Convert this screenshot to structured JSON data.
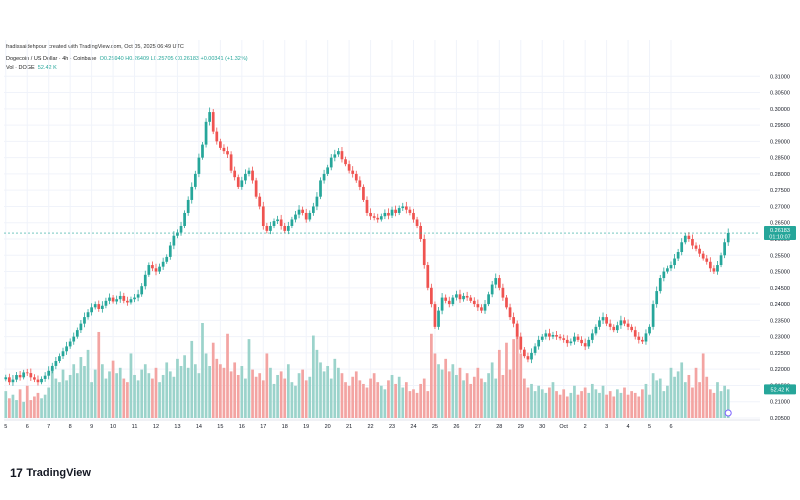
{
  "header": {
    "credit": "fradissaidehpour created with TradingView.com, Oct 05, 2025 06:49 UTC",
    "symbol_line": "Dogecoin / US Dollar · 4h · Coinbase",
    "ohlc_line": "O0.25940  H0.26409  L0.25705  C0.26183  +0.00341 (+1.32%)",
    "vol_label": "Vol · DOGE",
    "vol_value": "52.42 K"
  },
  "price_badge": {
    "price": "0.26183",
    "countdown": "01:10:07",
    "color": "#26a69a"
  },
  "vol_badge": {
    "value": "52.42 K",
    "color": "#26a69a"
  },
  "watermark": {
    "logo": "17",
    "name": "TradingView"
  },
  "colors": {
    "up": "#26a69a",
    "down": "#ef5350",
    "vol_up": "#9bd3cb",
    "vol_down": "#f3a4a2",
    "grid": "#f0f3fa",
    "axis_text": "#131722"
  },
  "chart_data": {
    "type": "candlestick",
    "title": "Dogecoin / US Dollar · 4h · Coinbase",
    "ylim": [
      0.205,
      0.315
    ],
    "yticks": [
      "0.31000",
      "0.30500",
      "0.30000",
      "0.29500",
      "0.29000",
      "0.28500",
      "0.28000",
      "0.27500",
      "0.27000",
      "0.26500",
      "0.26000",
      "0.25500",
      "0.25000",
      "0.24500",
      "0.24000",
      "0.23500",
      "0.23000",
      "0.22500",
      "0.22000",
      "0.21500",
      "0.21000",
      "0.20500"
    ],
    "xticks": [
      "5",
      "6",
      "7",
      "8",
      "9",
      "10",
      "11",
      "12",
      "13",
      "14",
      "15",
      "16",
      "17",
      "18",
      "19",
      "20",
      "21",
      "22",
      "23",
      "24",
      "25",
      "26",
      "27",
      "28",
      "29",
      "30",
      "Oct",
      "2",
      "3",
      "4",
      "5",
      "6"
    ],
    "last_price": 0.26183,
    "closes": [
      0.2175,
      0.216,
      0.2168,
      0.2182,
      0.2175,
      0.219,
      0.2188,
      0.2175,
      0.2168,
      0.216,
      0.217,
      0.218,
      0.2195,
      0.221,
      0.2225,
      0.224,
      0.2255,
      0.227,
      0.2285,
      0.23,
      0.232,
      0.234,
      0.236,
      0.2375,
      0.239,
      0.24,
      0.2385,
      0.2395,
      0.241,
      0.242,
      0.2408,
      0.2415,
      0.2425,
      0.241,
      0.2405,
      0.2415,
      0.242,
      0.243,
      0.2455,
      0.249,
      0.252,
      0.251,
      0.25,
      0.2515,
      0.253,
      0.2545,
      0.258,
      0.261,
      0.262,
      0.264,
      0.268,
      0.272,
      0.276,
      0.28,
      0.285,
      0.289,
      0.296,
      0.299,
      0.293,
      0.29,
      0.288,
      0.287,
      0.286,
      0.281,
      0.279,
      0.276,
      0.278,
      0.28,
      0.281,
      0.278,
      0.273,
      0.27,
      0.264,
      0.2625,
      0.264,
      0.2655,
      0.266,
      0.264,
      0.2625,
      0.264,
      0.266,
      0.2675,
      0.269,
      0.268,
      0.266,
      0.268,
      0.27,
      0.273,
      0.278,
      0.28,
      0.282,
      0.285,
      0.286,
      0.287,
      0.2845,
      0.283,
      0.281,
      0.28,
      0.278,
      0.276,
      0.272,
      0.268,
      0.267,
      0.2665,
      0.266,
      0.267,
      0.268,
      0.2672,
      0.269,
      0.268,
      0.2695,
      0.27,
      0.269,
      0.268,
      0.266,
      0.264,
      0.26,
      0.252,
      0.245,
      0.24,
      0.233,
      0.238,
      0.242,
      0.241,
      0.24,
      0.242,
      0.243,
      0.2415,
      0.2425,
      0.242,
      0.241,
      0.24,
      0.239,
      0.238,
      0.24,
      0.243,
      0.246,
      0.248,
      0.245,
      0.242,
      0.239,
      0.236,
      0.234,
      0.23,
      0.226,
      0.224,
      0.223,
      0.225,
      0.227,
      0.229,
      0.23,
      0.231,
      0.23,
      0.2305,
      0.23,
      0.2295,
      0.229,
      0.228,
      0.2285,
      0.23,
      0.229,
      0.228,
      0.227,
      0.229,
      0.231,
      0.233,
      0.235,
      0.236,
      0.234,
      0.233,
      0.232,
      0.2335,
      0.235,
      0.234,
      0.233,
      0.232,
      0.23,
      0.229,
      0.2285,
      0.231,
      0.233,
      0.24,
      0.244,
      0.248,
      0.25,
      0.251,
      0.252,
      0.254,
      0.256,
      0.259,
      0.261,
      0.26,
      0.258,
      0.257,
      0.2555,
      0.254,
      0.253,
      0.251,
      0.25,
      0.252,
      0.255,
      0.259,
      0.26183
    ],
    "volumes": [
      15,
      11,
      13,
      10,
      16,
      9,
      18,
      10,
      12,
      14,
      11,
      13,
      17,
      28,
      22,
      20,
      27,
      21,
      24,
      30,
      25,
      34,
      29,
      38,
      20,
      27,
      48,
      30,
      22,
      26,
      32,
      25,
      28,
      22,
      20,
      36,
      24,
      21,
      27,
      30,
      25,
      22,
      28,
      20,
      24,
      31,
      26,
      23,
      33,
      29,
      35,
      28,
      43,
      30,
      25,
      53,
      36,
      29,
      42,
      33,
      30,
      28,
      47,
      26,
      31,
      24,
      29,
      22,
      44,
      27,
      23,
      25,
      21,
      36,
      28,
      19,
      24,
      26,
      22,
      30,
      20,
      18,
      25,
      27,
      21,
      23,
      46,
      38,
      31,
      26,
      29,
      22,
      33,
      28,
      25,
      20,
      18,
      23,
      26,
      21,
      19,
      17,
      22,
      25,
      20,
      18,
      16,
      21,
      24,
      19,
      23,
      17,
      20,
      15,
      16,
      14,
      19,
      22,
      15,
      47,
      36,
      30,
      27,
      33,
      26,
      30,
      24,
      28,
      21,
      25,
      19,
      23,
      28,
      22,
      20,
      25,
      31,
      22,
      38,
      24,
      42,
      27,
      44,
      52,
      36,
      22,
      17,
      19,
      15,
      18,
      16,
      14,
      17,
      20,
      15,
      13,
      16,
      12,
      14,
      18,
      13,
      15,
      17,
      14,
      19,
      16,
      14,
      18,
      13,
      15,
      12,
      16,
      14,
      17,
      13,
      15,
      14,
      12,
      16,
      19,
      13,
      25,
      21,
      22,
      15,
      18,
      28,
      23,
      26,
      31,
      20,
      24,
      17,
      28,
      20,
      36,
      23,
      16,
      14,
      20,
      15,
      18,
      16
    ],
    "xtick_at_candle": [
      0,
      6,
      12,
      18,
      24,
      30,
      36,
      42,
      48,
      54,
      60,
      66,
      72,
      78,
      84,
      90,
      96,
      102,
      108,
      114,
      120,
      126,
      132,
      138,
      144,
      150,
      156,
      162,
      168,
      174,
      180,
      186
    ]
  }
}
